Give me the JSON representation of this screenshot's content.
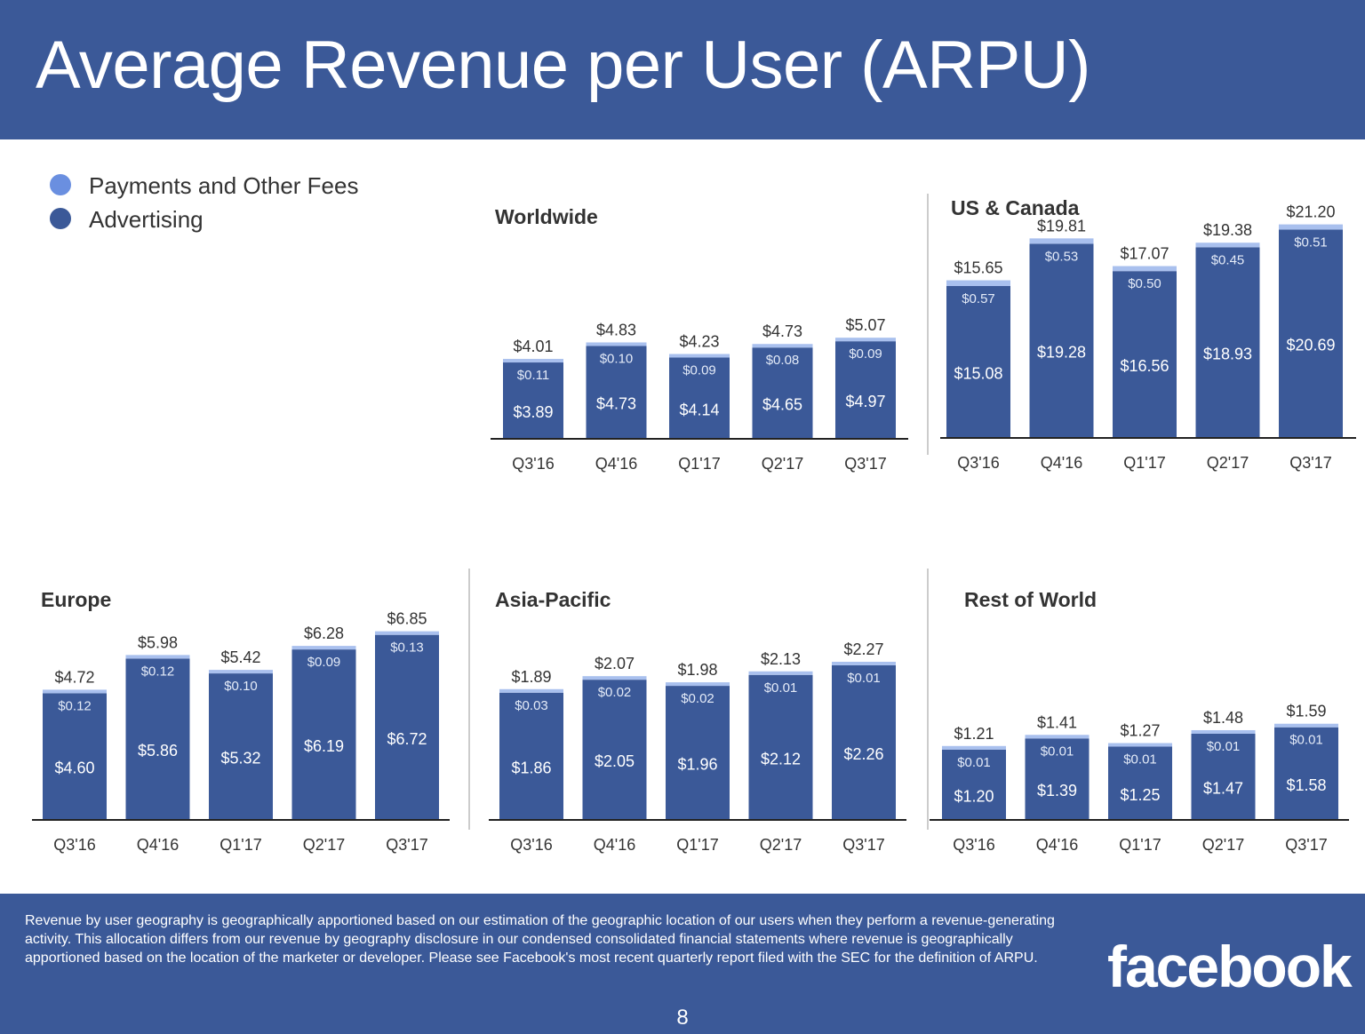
{
  "title": "Average Revenue per User (ARPU)",
  "legend": [
    {
      "label": "Payments and Other Fees",
      "color": "#6a8fe0"
    },
    {
      "label": "Advertising",
      "color": "#3b5998"
    }
  ],
  "colors": {
    "advertising": "#3b5998",
    "payments": "#a9c0ee",
    "divider": "#cccccc",
    "axis": "#222222"
  },
  "chart_data": [
    {
      "type": "bar",
      "stacked": true,
      "title": "Worldwide",
      "categories": [
        "Q3'16",
        "Q4'16",
        "Q1'17",
        "Q2'17",
        "Q3'17"
      ],
      "series": [
        {
          "name": "Advertising",
          "values": [
            3.89,
            4.73,
            4.14,
            4.65,
            4.97
          ],
          "labels": [
            "$3.89",
            "$4.73",
            "$4.14",
            "$4.65",
            "$4.97"
          ]
        },
        {
          "name": "Payments and Other Fees",
          "values": [
            0.11,
            0.1,
            0.09,
            0.08,
            0.09
          ],
          "labels": [
            "$0.11",
            "$0.10",
            "$0.09",
            "$0.08",
            "$0.09"
          ]
        }
      ],
      "totals": [
        4.01,
        4.83,
        4.23,
        4.73,
        5.07
      ],
      "total_labels": [
        "$4.01",
        "$4.83",
        "$4.23",
        "$4.73",
        "$5.07"
      ]
    },
    {
      "type": "bar",
      "stacked": true,
      "title": "US & Canada",
      "categories": [
        "Q3'16",
        "Q4'16",
        "Q1'17",
        "Q2'17",
        "Q3'17"
      ],
      "series": [
        {
          "name": "Advertising",
          "values": [
            15.08,
            19.28,
            16.56,
            18.93,
            20.69
          ],
          "labels": [
            "$15.08",
            "$19.28",
            "$16.56",
            "$18.93",
            "$20.69"
          ]
        },
        {
          "name": "Payments and Other Fees",
          "values": [
            0.57,
            0.53,
            0.5,
            0.45,
            0.51
          ],
          "labels": [
            "$0.57",
            "$0.53",
            "$0.50",
            "$0.45",
            "$0.51"
          ]
        }
      ],
      "totals": [
        15.65,
        19.81,
        17.07,
        19.38,
        21.2
      ],
      "total_labels": [
        "$15.65",
        "$19.81",
        "$17.07",
        "$19.38",
        "$21.20"
      ]
    },
    {
      "type": "bar",
      "stacked": true,
      "title": "Europe",
      "categories": [
        "Q3'16",
        "Q4'16",
        "Q1'17",
        "Q2'17",
        "Q3'17"
      ],
      "series": [
        {
          "name": "Advertising",
          "values": [
            4.6,
            5.86,
            5.32,
            6.19,
            6.72
          ],
          "labels": [
            "$4.60",
            "$5.86",
            "$5.32",
            "$6.19",
            "$6.72"
          ]
        },
        {
          "name": "Payments and Other Fees",
          "values": [
            0.12,
            0.12,
            0.1,
            0.09,
            0.13
          ],
          "labels": [
            "$0.12",
            "$0.12",
            "$0.10",
            "$0.09",
            "$0.13"
          ]
        }
      ],
      "totals": [
        4.72,
        5.98,
        5.42,
        6.28,
        6.85
      ],
      "total_labels": [
        "$4.72",
        "$5.98",
        "$5.42",
        "$6.28",
        "$6.85"
      ]
    },
    {
      "type": "bar",
      "stacked": true,
      "title": "Asia-Pacific",
      "categories": [
        "Q3'16",
        "Q4'16",
        "Q1'17",
        "Q2'17",
        "Q3'17"
      ],
      "series": [
        {
          "name": "Advertising",
          "values": [
            1.86,
            2.05,
            1.96,
            2.12,
            2.26
          ],
          "labels": [
            "$1.86",
            "$2.05",
            "$1.96",
            "$2.12",
            "$2.26"
          ]
        },
        {
          "name": "Payments and Other Fees",
          "values": [
            0.03,
            0.02,
            0.02,
            0.01,
            0.01
          ],
          "labels": [
            "$0.03",
            "$0.02",
            "$0.02",
            "$0.01",
            "$0.01"
          ]
        }
      ],
      "totals": [
        1.89,
        2.07,
        1.98,
        2.13,
        2.27
      ],
      "total_labels": [
        "$1.89",
        "$2.07",
        "$1.98",
        "$2.13",
        "$2.27"
      ]
    },
    {
      "type": "bar",
      "stacked": true,
      "title": "Rest of World",
      "categories": [
        "Q3'16",
        "Q4'16",
        "Q1'17",
        "Q2'17",
        "Q3'17"
      ],
      "series": [
        {
          "name": "Advertising",
          "values": [
            1.2,
            1.39,
            1.25,
            1.47,
            1.58
          ],
          "labels": [
            "$1.20",
            "$1.39",
            "$1.25",
            "$1.47",
            "$1.58"
          ]
        },
        {
          "name": "Payments and Other Fees",
          "values": [
            0.01,
            0.01,
            0.01,
            0.01,
            0.01
          ],
          "labels": [
            "$0.01",
            "$0.01",
            "$0.01",
            "$0.01",
            "$0.01"
          ]
        }
      ],
      "totals": [
        1.21,
        1.41,
        1.27,
        1.48,
        1.59
      ],
      "total_labels": [
        "$1.21",
        "$1.41",
        "$1.27",
        "$1.48",
        "$1.59"
      ]
    }
  ],
  "footer": {
    "note": "Revenue by user geography is geographically apportioned based on our estimation of the geographic location of our users when they perform a revenue-generating activity. This allocation differs from our revenue by geography disclosure in our condensed consolidated financial statements where revenue is geographically apportioned based on the location of the marketer or developer. Please see Facebook's most recent quarterly report filed with the SEC for the definition of ARPU.",
    "logo": "facebook",
    "page_number": "8"
  }
}
